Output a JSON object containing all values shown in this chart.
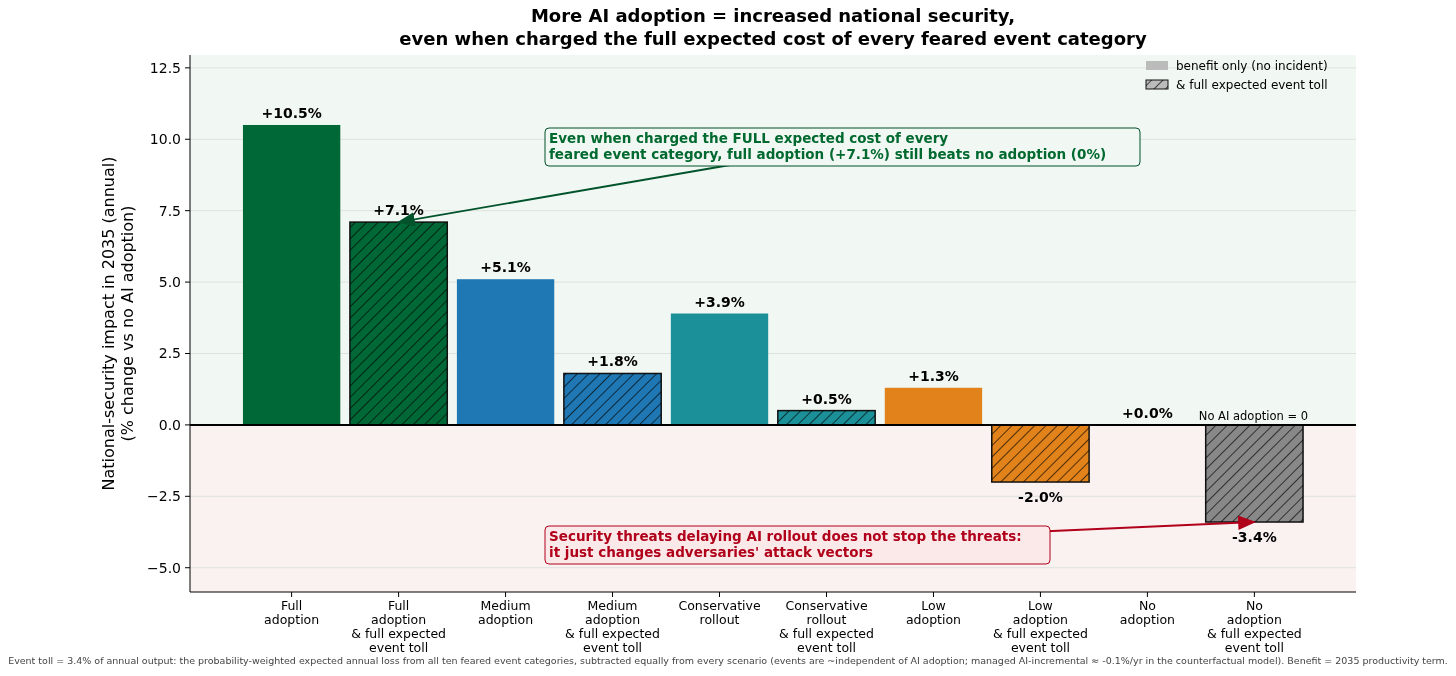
{
  "chart_data": {
    "type": "bar",
    "title": "More AI adoption = increased national security,\neven when charged the full expected cost of every feared event category",
    "ylabel": "National-security impact in 2035 (annual)\n(% change vs no AI adoption)",
    "categories": [
      "Full\nadoption",
      "Full\nadoption\n& full expected\nevent toll",
      "Medium\nadoption",
      "Medium\nadoption\n& full expected\nevent toll",
      "Conservative\nrollout",
      "Conservative\nrollout\n& full expected\nevent toll",
      "Low\nadoption",
      "Low\nadoption\n& full expected\nevent toll",
      "No\nadoption",
      "No\nadoption\n& full expected\nevent toll"
    ],
    "series": [
      {
        "colors": [
          "#006837",
          null,
          "#1f77b4",
          null,
          "#1c9099",
          null,
          "#e1821a",
          null,
          "#888888",
          null
        ],
        "values": [
          10.5,
          null,
          5.1,
          null,
          3.9,
          null,
          1.3,
          null,
          0.0,
          null
        ],
        "value_labels": [
          "+10.5%",
          null,
          "+5.1%",
          null,
          "+3.9%",
          null,
          "+1.3%",
          null,
          "+0.0%",
          null
        ]
      },
      {
        "colors": [
          null,
          "#006837",
          null,
          "#1f77b4",
          null,
          "#1c9099",
          null,
          "#e1821a",
          null,
          "#888888"
        ],
        "values": [
          null,
          7.1,
          null,
          1.8,
          null,
          0.5,
          null,
          -2.0,
          null,
          -3.4
        ],
        "value_labels": [
          null,
          "+7.1%",
          null,
          "+1.8%",
          null,
          "+0.5%",
          null,
          "-2.0%",
          null,
          "-3.4%"
        ]
      }
    ],
    "ylim": [
      -5.85,
      12.95
    ],
    "yticks": [
      {
        "value": -5,
        "label": "−5.0"
      },
      {
        "value": -2.5,
        "label": "−2.5"
      },
      {
        "value": 0,
        "label": "0.0"
      },
      {
        "value": 2.5,
        "label": "2.5"
      },
      {
        "value": 5,
        "label": "5.0"
      },
      {
        "value": 7.5,
        "label": "7.5"
      },
      {
        "value": 10,
        "label": "10.0"
      },
      {
        "value": 12.5,
        "label": "12.5"
      }
    ],
    "grid": "y",
    "ref_lines": [
      {
        "axis": "y",
        "value": 0,
        "label": "No AI adoption = 0",
        "color": "#000000"
      }
    ],
    "bands": [
      {
        "axis": "y",
        "from": 0,
        "to": 12.95,
        "color": "#f1f7f2"
      },
      {
        "axis": "y",
        "from": -5.85,
        "to": 0,
        "color": "#faf1f1"
      }
    ],
    "annotations": [
      "benefit only (no incident)",
      "& full expected event toll",
      {
        "text": "Even when charged the FULL expected cost of every\nfeared event category, full adoption (+7.1%) still beats no adoption (0%)",
        "x": "Full\nadoption\n& full expected\nevent toll",
        "y": 7.1
      },
      {
        "text": "Security threats delaying AI rollout does not stop the threats:\nit just changes adversaries' attack vectors",
        "x": "No\nadoption\n& full expected\nevent toll",
        "y": -3.4
      },
      "Event toll = 3.4% of annual output: the probability-weighted expected annual loss from all ten feared event categories, subtracted equally from every scenario (events are ~independent of AI adoption; managed AI-incremental ≈ -0.1%/yr in the counterfactual model). Benefit = 2035 productivity term."
    ]
  }
}
